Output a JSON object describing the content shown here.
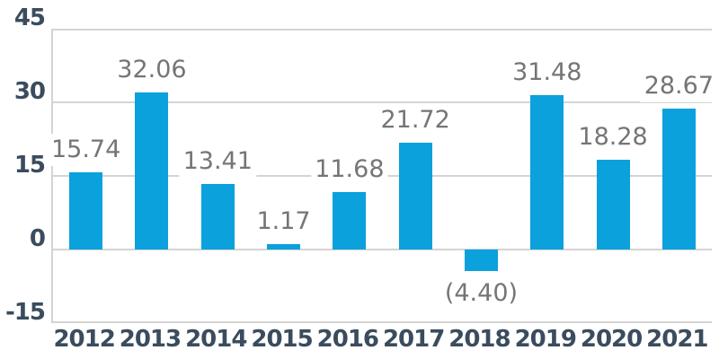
{
  "chart_data": {
    "type": "bar",
    "title": "",
    "xlabel": "",
    "ylabel": "",
    "categories": [
      "2012",
      "2013",
      "2014",
      "2015",
      "2016",
      "2017",
      "2018",
      "2019",
      "2020",
      "2021"
    ],
    "values": [
      15.74,
      32.06,
      13.41,
      1.17,
      11.68,
      21.72,
      -4.4,
      31.48,
      18.28,
      28.67
    ],
    "data_labels": [
      "15.74",
      "32.06",
      "13.41",
      "1.17",
      "11.68",
      "21.72",
      "(4.40)",
      "31.48",
      "18.28",
      "28.67"
    ],
    "yticks": [
      45,
      30,
      15,
      0,
      -15
    ],
    "ytick_labels": [
      "45",
      "30",
      "15",
      "0",
      "-15"
    ],
    "ylim": [
      -15,
      45
    ],
    "grid": true,
    "legend": false,
    "colors": {
      "bar": "#0aa1dc",
      "gridline": "#d4d4d4",
      "data_label_text": "#757575",
      "axis_label_text": "#3a4c5e",
      "background": "#ffffff"
    }
  }
}
